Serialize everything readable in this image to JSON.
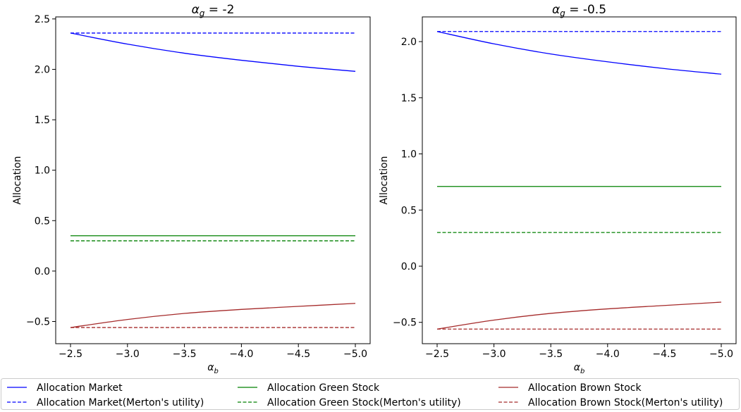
{
  "figure": {
    "ylabel": "Allocation",
    "legend": {
      "placement": "bottom",
      "entries": [
        {
          "label": "Allocation Market",
          "color": "#0000ff",
          "style": "solid"
        },
        {
          "label": "Allocation Market(Merton's utility)",
          "color": "#0000ff",
          "style": "dashed"
        },
        {
          "label": "Allocation Green Stock",
          "color": "#008000",
          "style": "solid"
        },
        {
          "label": "Allocation Green Stock(Merton's utility)",
          "color": "#008000",
          "style": "dashed"
        },
        {
          "label": "Allocation Brown Stock",
          "color": "#a52a2a",
          "style": "solid"
        },
        {
          "label": "Allocation Brown Stock(Merton's utility)",
          "color": "#a52a2a",
          "style": "dashed"
        }
      ]
    }
  },
  "chart_data": [
    {
      "type": "line",
      "title_prefix": "α",
      "title_sub": "g",
      "title_suffix": " = -2",
      "xlabel_main": "α",
      "xlabel_sub": "b",
      "ylabel": "Allocation",
      "xlim": [
        -2.5,
        -5.0
      ],
      "x_inverted": true,
      "ylim": [
        -0.72,
        2.52
      ],
      "xticks": [
        -2.5,
        -3.0,
        -3.5,
        -4.0,
        -4.5,
        -5.0
      ],
      "xtick_labels": [
        "−2.5",
        "−3.0",
        "−3.5",
        "−4.0",
        "−4.5",
        "−5.0"
      ],
      "yticks": [
        -0.5,
        0.0,
        0.5,
        1.0,
        1.5,
        2.0,
        2.5
      ],
      "ytick_labels": [
        "−0.5",
        "0.0",
        "0.5",
        "1.0",
        "1.5",
        "2.0",
        "2.5"
      ],
      "grid": false,
      "x": [
        -2.5,
        -3.0,
        -3.5,
        -4.0,
        -4.5,
        -5.0
      ],
      "series": [
        {
          "name": "Allocation Market",
          "color": "#0000ff",
          "dashed": false,
          "values": [
            2.36,
            2.25,
            2.16,
            2.09,
            2.03,
            1.98
          ]
        },
        {
          "name": "Allocation Market(Merton's utility)",
          "color": "#0000ff",
          "dashed": true,
          "values": [
            2.36,
            2.36,
            2.36,
            2.36,
            2.36,
            2.36
          ]
        },
        {
          "name": "Allocation Green Stock",
          "color": "#008000",
          "dashed": false,
          "values": [
            0.35,
            0.35,
            0.35,
            0.35,
            0.35,
            0.35
          ]
        },
        {
          "name": "Allocation Green Stock(Merton's utility)",
          "color": "#008000",
          "dashed": true,
          "values": [
            0.3,
            0.3,
            0.3,
            0.3,
            0.3,
            0.3
          ]
        },
        {
          "name": "Allocation Brown Stock",
          "color": "#a52a2a",
          "dashed": false,
          "values": [
            -0.56,
            -0.48,
            -0.42,
            -0.38,
            -0.35,
            -0.32
          ]
        },
        {
          "name": "Allocation Brown Stock(Merton's utility)",
          "color": "#a52a2a",
          "dashed": true,
          "values": [
            -0.56,
            -0.56,
            -0.56,
            -0.56,
            -0.56,
            -0.56
          ]
        }
      ]
    },
    {
      "type": "line",
      "title_prefix": "α",
      "title_sub": "g",
      "title_suffix": " = -0.5",
      "xlabel_main": "α",
      "xlabel_sub": "b",
      "ylabel": "Allocation",
      "xlim": [
        -2.5,
        -5.0
      ],
      "x_inverted": true,
      "ylim": [
        -0.69,
        2.22
      ],
      "xticks": [
        -2.5,
        -3.0,
        -3.5,
        -4.0,
        -4.5,
        -5.0
      ],
      "xtick_labels": [
        "−2.5",
        "−3.0",
        "−3.5",
        "−4.0",
        "−4.5",
        "−5.0"
      ],
      "yticks": [
        -0.5,
        0.0,
        0.5,
        1.0,
        1.5,
        2.0
      ],
      "ytick_labels": [
        "−0.5",
        "0.0",
        "0.5",
        "1.0",
        "1.5",
        "2.0"
      ],
      "grid": false,
      "x": [
        -2.5,
        -3.0,
        -3.5,
        -4.0,
        -4.5,
        -5.0
      ],
      "series": [
        {
          "name": "Allocation Market",
          "color": "#0000ff",
          "dashed": false,
          "values": [
            2.09,
            1.98,
            1.89,
            1.82,
            1.76,
            1.71
          ]
        },
        {
          "name": "Allocation Market(Merton's utility)",
          "color": "#0000ff",
          "dashed": true,
          "values": [
            2.09,
            2.09,
            2.09,
            2.09,
            2.09,
            2.09
          ]
        },
        {
          "name": "Allocation Green Stock",
          "color": "#008000",
          "dashed": false,
          "values": [
            0.71,
            0.71,
            0.71,
            0.71,
            0.71,
            0.71
          ]
        },
        {
          "name": "Allocation Green Stock(Merton's utility)",
          "color": "#008000",
          "dashed": true,
          "values": [
            0.3,
            0.3,
            0.3,
            0.3,
            0.3,
            0.3
          ]
        },
        {
          "name": "Allocation Brown Stock",
          "color": "#a52a2a",
          "dashed": false,
          "values": [
            -0.56,
            -0.48,
            -0.42,
            -0.38,
            -0.35,
            -0.32
          ]
        },
        {
          "name": "Allocation Brown Stock(Merton's utility)",
          "color": "#a52a2a",
          "dashed": true,
          "values": [
            -0.56,
            -0.56,
            -0.56,
            -0.56,
            -0.56,
            -0.56
          ]
        }
      ]
    }
  ]
}
